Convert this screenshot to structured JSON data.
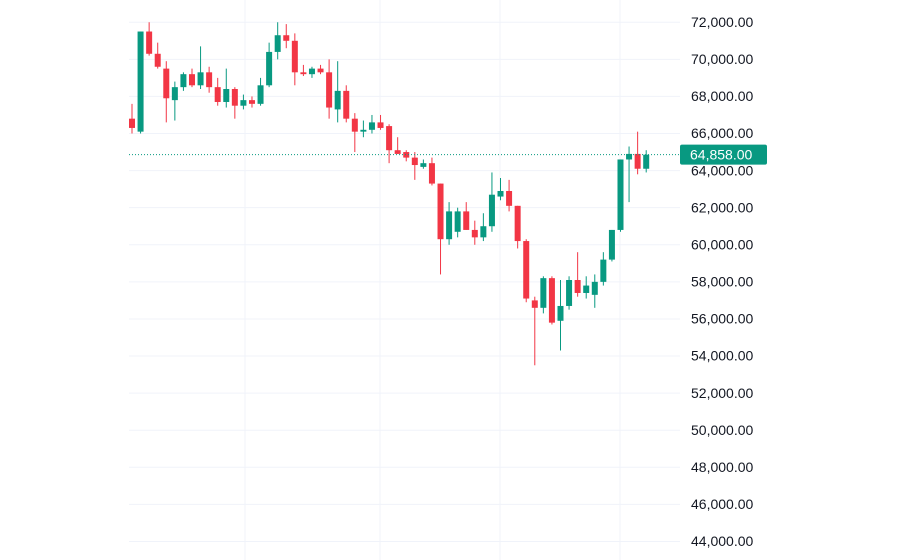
{
  "chart_data": {
    "type": "candlestick",
    "open": [
      66800,
      66100,
      71500,
      70300,
      69500,
      67800,
      68500,
      69200,
      68600,
      69300,
      68500,
      67700,
      68400,
      67500,
      67800,
      67600,
      68600,
      70400,
      71300,
      71000,
      69300,
      69200,
      69500,
      69300,
      67300,
      68300,
      66800,
      66100,
      66200,
      66600,
      66400,
      65100,
      65000,
      64700,
      64200,
      64400,
      63300,
      60300,
      60700,
      61800,
      60800,
      60400,
      61000,
      62600,
      62900,
      62100,
      60200,
      57000,
      56600,
      58200,
      55900,
      56700,
      58100,
      57400,
      57300,
      58000,
      59200,
      60800,
      64600,
      64900,
      64100
    ],
    "high": [
      67600,
      71500,
      72000,
      70900,
      69900,
      68800,
      69300,
      69500,
      70700,
      69600,
      69000,
      69500,
      68500,
      68100,
      68000,
      69000,
      70900,
      72000,
      71900,
      71400,
      69700,
      69600,
      69700,
      70000,
      69900,
      68600,
      67100,
      66700,
      67000,
      67000,
      66500,
      65800,
      65100,
      65000,
      64600,
      64700,
      63300,
      62300,
      62000,
      62300,
      61300,
      61700,
      63900,
      63600,
      63500,
      62100,
      60300,
      57200,
      58300,
      58300,
      58100,
      58300,
      59600,
      58300,
      58400,
      59600,
      60800,
      64600,
      65300,
      66100,
      65100
    ],
    "low": [
      66000,
      66000,
      70200,
      69500,
      66600,
      66700,
      68300,
      68500,
      68400,
      68200,
      67500,
      67400,
      66800,
      67300,
      67400,
      67500,
      68500,
      70000,
      70600,
      68600,
      69100,
      69000,
      69200,
      66800,
      66600,
      66600,
      65000,
      65800,
      66000,
      66200,
      64400,
      64900,
      64500,
      63500,
      64100,
      63200,
      58400,
      60000,
      60400,
      60800,
      60000,
      60200,
      60700,
      62400,
      61800,
      59800,
      56900,
      53500,
      56300,
      55700,
      54300,
      56500,
      57200,
      57100,
      56600,
      57800,
      59100,
      60700,
      62300,
      63800,
      63900
    ],
    "close": [
      66300,
      71500,
      70300,
      69600,
      67900,
      68500,
      69200,
      68600,
      69300,
      68500,
      67700,
      68400,
      67500,
      67800,
      67600,
      68600,
      70400,
      71300,
      71000,
      69300,
      69200,
      69500,
      69300,
      67400,
      68300,
      66800,
      66100,
      66200,
      66600,
      66300,
      65100,
      64900,
      64700,
      64300,
      64400,
      63300,
      60300,
      61800,
      61800,
      60800,
      60400,
      61000,
      62700,
      62900,
      62100,
      60200,
      57100,
      56600,
      58200,
      55800,
      56700,
      58100,
      57400,
      57800,
      58000,
      59200,
      60800,
      64600,
      64900,
      64100,
      64858
    ],
    "up_color": "#089981",
    "down_color": "#f23645",
    "last_price": {
      "value": 64858,
      "label": "64,858.00"
    },
    "ylim": [
      43000,
      73200
    ],
    "yticks": [
      {
        "value": 44000,
        "label": "44,000.00"
      },
      {
        "value": 46000,
        "label": "46,000.00"
      },
      {
        "value": 48000,
        "label": "48,000.00"
      },
      {
        "value": 50000,
        "label": "50,000.00"
      },
      {
        "value": 52000,
        "label": "52,000.00"
      },
      {
        "value": 54000,
        "label": "54,000.00"
      },
      {
        "value": 56000,
        "label": "56,000.00"
      },
      {
        "value": 58000,
        "label": "58,000.00"
      },
      {
        "value": 60000,
        "label": "60,000.00"
      },
      {
        "value": 62000,
        "label": "62,000.00"
      },
      {
        "value": 64000,
        "label": "64,000.00"
      },
      {
        "value": 66000,
        "label": "66,000.00"
      },
      {
        "value": 68000,
        "label": "68,000.00"
      },
      {
        "value": 70000,
        "label": "70,000.00"
      },
      {
        "value": 72000,
        "label": "72,000.00"
      }
    ],
    "grid": true
  }
}
